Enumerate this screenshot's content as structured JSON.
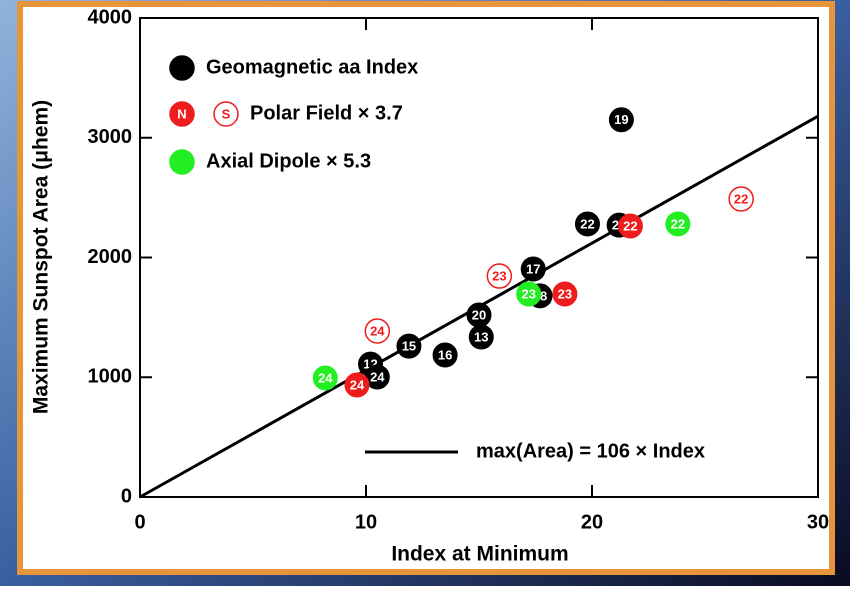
{
  "chart_data": {
    "type": "scatter",
    "x_label": "Index at Minimum",
    "y_label": "Maximum Sunspot Area (μhem)",
    "xlim": [
      0,
      30
    ],
    "xticks": [
      0,
      10,
      20,
      30
    ],
    "ylim": [
      0,
      4000
    ],
    "yticks": [
      0,
      1000,
      2000,
      3000,
      4000
    ],
    "fit": {
      "label": "max(Area) = 106 × Index",
      "slope": 106,
      "color": "#000000"
    },
    "series": [
      {
        "name": "Geomagnetic aa Index",
        "color": "#000000",
        "filled": true,
        "x": [
          21.3,
          19.8,
          21.2,
          17.4,
          17.7,
          15.0,
          15.1,
          11.9,
          13.5,
          10.2,
          10.5
        ],
        "values": [
          3150,
          2280,
          2270,
          1904,
          1680,
          1520,
          1336,
          1260,
          1186,
          1110,
          1002
        ],
        "labels": [
          "19",
          "22",
          "21",
          "17",
          "18",
          "20",
          "13",
          "15",
          "16",
          "12",
          "24"
        ]
      },
      {
        "name": "Polar Field × 3.7",
        "marker_label": "N",
        "color": "#ee1c1c",
        "filled": true,
        "x": [
          21.7,
          18.8,
          9.6
        ],
        "values": [
          2263,
          1695,
          935
        ],
        "labels": [
          "22",
          "23",
          "24"
        ]
      },
      {
        "marker_label": "S",
        "color": "#ee1c1c",
        "filled": false,
        "x": [
          26.6,
          15.9,
          10.5
        ],
        "values": [
          2489,
          1845,
          1386
        ],
        "labels": [
          "22",
          "23",
          "24"
        ]
      },
      {
        "name": "Axial Dipole × 5.3",
        "color": "#22ee22",
        "filled": true,
        "x": [
          23.8,
          17.2,
          8.2
        ],
        "values": [
          2280,
          1695,
          994
        ],
        "labels": [
          "22",
          "23",
          "24"
        ]
      }
    ]
  }
}
